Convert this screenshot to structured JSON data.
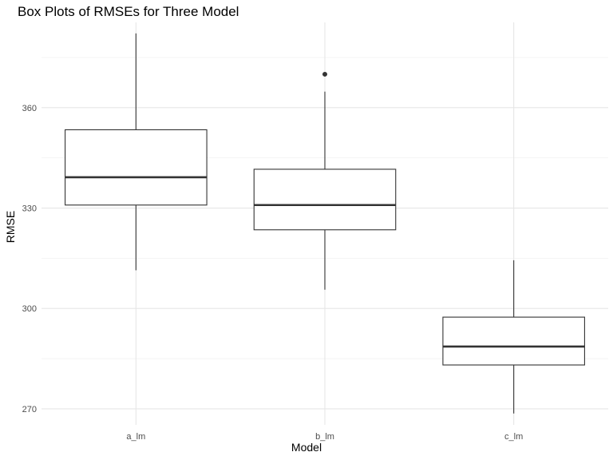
{
  "chart_data": {
    "type": "box",
    "title": "Box Plots of RMSEs for Three Model",
    "xlabel": "Model",
    "ylabel": "RMSE",
    "categories": [
      "a_lm",
      "b_lm",
      "c_lm"
    ],
    "boxes": [
      {
        "name": "a_lm",
        "min": 311.4,
        "q1": 330.9,
        "median": 339.2,
        "q3": 353.4,
        "max": 382.2,
        "outliers": []
      },
      {
        "name": "b_lm",
        "min": 305.6,
        "q1": 323.5,
        "median": 330.9,
        "q3": 341.6,
        "max": 364.8,
        "outliers": [
          370.0
        ]
      },
      {
        "name": "c_lm",
        "min": 268.6,
        "q1": 283.1,
        "median": 288.6,
        "q3": 297.4,
        "max": 314.4,
        "outliers": []
      }
    ],
    "y_ticks": [
      270,
      300,
      330,
      360
    ],
    "y_tick_labels": [
      "270",
      "300",
      "330",
      "360"
    ],
    "ylim": [
      265.2,
      385.5
    ],
    "grid": true,
    "colors": {
      "box_stroke": "#333333",
      "grid_major": "#e6e6e6",
      "grid_minor": "#f2f2f2",
      "tick_text": "#4d4d4d"
    }
  }
}
